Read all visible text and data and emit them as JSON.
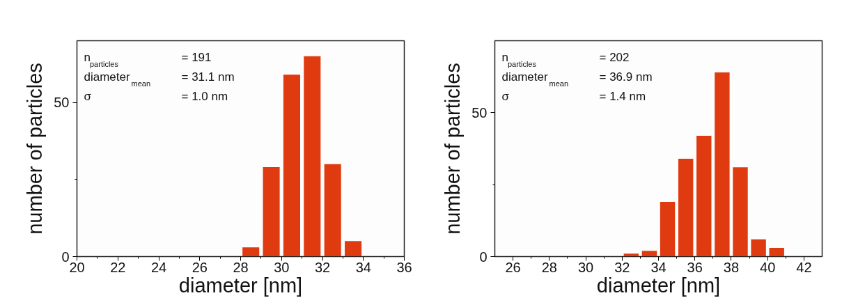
{
  "chart_data": [
    {
      "type": "histogram",
      "xlabel": "diameter [nm]",
      "ylabel": "number of particles",
      "bins": [
        28,
        29,
        30,
        31,
        32,
        33,
        34
      ],
      "values": [
        3,
        29,
        59,
        65,
        30,
        5
      ],
      "color": "#e03a10",
      "xlim": [
        20,
        36
      ],
      "xticks": [
        20,
        {
          "value": 21,
          "label": null
        },
        22,
        {
          "value": 23,
          "label": null
        },
        24,
        {
          "value": 25,
          "label": null
        },
        26,
        {
          "value": 27,
          "label": null
        },
        28,
        {
          "value": 29,
          "label": null
        },
        30,
        {
          "value": 31,
          "label": null
        },
        32,
        {
          "value": 33,
          "label": null
        },
        34,
        {
          "value": 35,
          "label": null
        },
        36
      ],
      "ylim": [
        0,
        70
      ],
      "yticks": [
        0,
        {
          "value": 25,
          "label": null
        },
        50
      ],
      "grid": false,
      "annotations": [
        "n$_{particles}$ = 191",
        "diameter$_{mean}$ = 31.1 nm",
        "σ = 1.0 nm"
      ]
    },
    {
      "type": "histogram",
      "xlabel": "diameter [nm]",
      "ylabel": "number of particles",
      "bins": [
        32,
        33,
        34,
        35,
        36,
        37,
        38,
        39,
        40,
        41
      ],
      "values": [
        1,
        2,
        19,
        34,
        42,
        64,
        31,
        6,
        3
      ],
      "color": "#e03a10",
      "xlim": [
        25,
        43
      ],
      "xticks": [
        26,
        {
          "value": 27,
          "label": null
        },
        28,
        {
          "value": 29,
          "label": null
        },
        30,
        {
          "value": 31,
          "label": null
        },
        32,
        {
          "value": 33,
          "label": null
        },
        34,
        {
          "value": 35,
          "label": null
        },
        36,
        {
          "value": 37,
          "label": null
        },
        38,
        {
          "value": 39,
          "label": null
        },
        40,
        {
          "value": 41,
          "label": null
        },
        42
      ],
      "ylim": [
        0,
        75
      ],
      "yticks": [
        0,
        {
          "value": 25,
          "label": null
        },
        50
      ],
      "grid": false,
      "annotations": [
        "n$_{particles}$ = 202",
        "diameter$_{mean}$ = 36.9 nm",
        "σ = 1.4 nm"
      ]
    }
  ]
}
